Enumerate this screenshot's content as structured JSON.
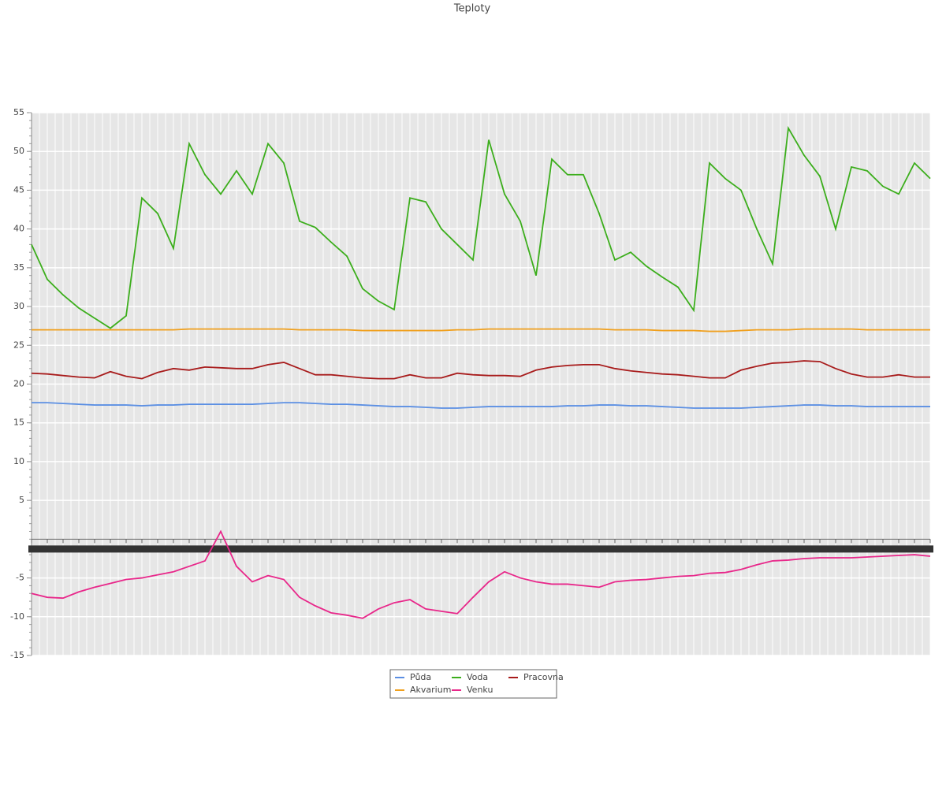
{
  "chart_data": {
    "type": "line",
    "title": "Teploty",
    "categories": [
      null,
      null,
      null,
      null,
      null,
      null,
      null,
      null,
      null,
      null,
      null,
      null,
      null,
      null,
      null,
      null,
      null,
      null,
      null,
      null,
      null,
      null,
      null,
      null,
      null,
      null,
      null,
      null,
      null,
      null,
      null,
      null,
      null,
      null,
      null,
      null,
      null,
      null,
      null,
      null,
      null,
      null,
      null,
      null,
      null,
      null,
      null,
      null,
      null,
      null,
      null,
      null,
      null,
      null,
      null,
      null,
      null,
      null
    ],
    "ylim": [
      -15,
      55
    ],
    "yticks": [
      -15,
      -10,
      -5,
      5,
      10,
      15,
      20,
      25,
      30,
      35,
      40,
      45,
      50,
      55
    ],
    "grid": true,
    "legend": "bottom",
    "series": [
      {
        "name": "Půda",
        "color": "#5b8fe3",
        "values": [
          17.6,
          17.6,
          17.5,
          17.4,
          17.3,
          17.3,
          17.3,
          17.2,
          17.3,
          17.3,
          17.4,
          17.4,
          17.4,
          17.4,
          17.4,
          17.5,
          17.6,
          17.6,
          17.5,
          17.4,
          17.4,
          17.3,
          17.2,
          17.1,
          17.1,
          17,
          16.9,
          16.9,
          17,
          17.1,
          17.1,
          17.1,
          17.1,
          17.1,
          17.2,
          17.2,
          17.3,
          17.3,
          17.2,
          17.2,
          17.1,
          17,
          16.9,
          16.9,
          16.9,
          16.9,
          17,
          17.1,
          17.2,
          17.3,
          17.3,
          17.2,
          17.2,
          17.1,
          17.1,
          17.1,
          17.1,
          17.1
        ]
      },
      {
        "name": "Voda",
        "color": "#3cae1c",
        "values": [
          38,
          33.5,
          31.5,
          29.8,
          28.5,
          27.2,
          28.8,
          44,
          42,
          37.5,
          51,
          47,
          44.5,
          47.5,
          44.5,
          51,
          48.5,
          41,
          40.2,
          38.3,
          36.5,
          32.3,
          30.7,
          29.6,
          44,
          43.5,
          40,
          38,
          36,
          51.5,
          44.5,
          41,
          34,
          49,
          47,
          47,
          42,
          36,
          37,
          35.2,
          33.8,
          32.5,
          29.5,
          48.5,
          46.5,
          45,
          40,
          35.5,
          53,
          49.5,
          46.8,
          40,
          48,
          47.5,
          45.5,
          44.5,
          48.5,
          46.5
        ]
      },
      {
        "name": "Pracovna",
        "color": "#a81c1c",
        "values": [
          21.4,
          21.3,
          21.1,
          20.9,
          20.8,
          21.6,
          21,
          20.7,
          21.5,
          22,
          21.8,
          22.2,
          22.1,
          22,
          22,
          22.5,
          22.8,
          22,
          21.2,
          21.2,
          21,
          20.8,
          20.7,
          20.7,
          21.2,
          20.8,
          20.8,
          21.4,
          21.2,
          21.1,
          21.1,
          21,
          21.8,
          22.2,
          22.4,
          22.5,
          22.5,
          22,
          21.7,
          21.5,
          21.3,
          21.2,
          21,
          20.8,
          20.8,
          21.8,
          22.3,
          22.7,
          22.8,
          23,
          22.9,
          22,
          21.3,
          20.9,
          20.9,
          21.2,
          20.9,
          20.9
        ]
      },
      {
        "name": "Akvarium",
        "color": "#f0a01e",
        "values": [
          27,
          27,
          27,
          27,
          27,
          27,
          27,
          27,
          27,
          27,
          27.1,
          27.1,
          27.1,
          27.1,
          27.1,
          27.1,
          27.1,
          27,
          27,
          27,
          27,
          26.9,
          26.9,
          26.9,
          26.9,
          26.9,
          26.9,
          27,
          27,
          27.1,
          27.1,
          27.1,
          27.1,
          27.1,
          27.1,
          27.1,
          27.1,
          27,
          27,
          27,
          26.9,
          26.9,
          26.9,
          26.8,
          26.8,
          26.9,
          27,
          27,
          27,
          27.1,
          27.1,
          27.1,
          27.1,
          27,
          27,
          27,
          27,
          27
        ]
      },
      {
        "name": "Venku",
        "color": "#e8278a",
        "values": [
          -7,
          -7.5,
          -7.6,
          -6.8,
          -6.2,
          -5.7,
          -5.2,
          -5,
          -4.6,
          -4.2,
          -3.5,
          -2.8,
          1,
          -3.5,
          -5.5,
          -4.7,
          -5.2,
          -7.5,
          -8.6,
          -9.5,
          -9.8,
          -10.2,
          -9,
          -8.2,
          -7.8,
          -9,
          -9.3,
          -9.6,
          -7.5,
          -5.5,
          -4.2,
          -5,
          -5.5,
          -5.8,
          -5.8,
          -6,
          -6.2,
          -5.5,
          -5.3,
          -5.2,
          -5,
          -4.8,
          -4.7,
          -4.4,
          -4.3,
          -3.9,
          -3.3,
          -2.8,
          -2.7,
          -2.5,
          -2.4,
          -2.4,
          -2.4,
          -2.3,
          -2.2,
          -2.1,
          -2,
          -2.2
        ]
      }
    ]
  }
}
